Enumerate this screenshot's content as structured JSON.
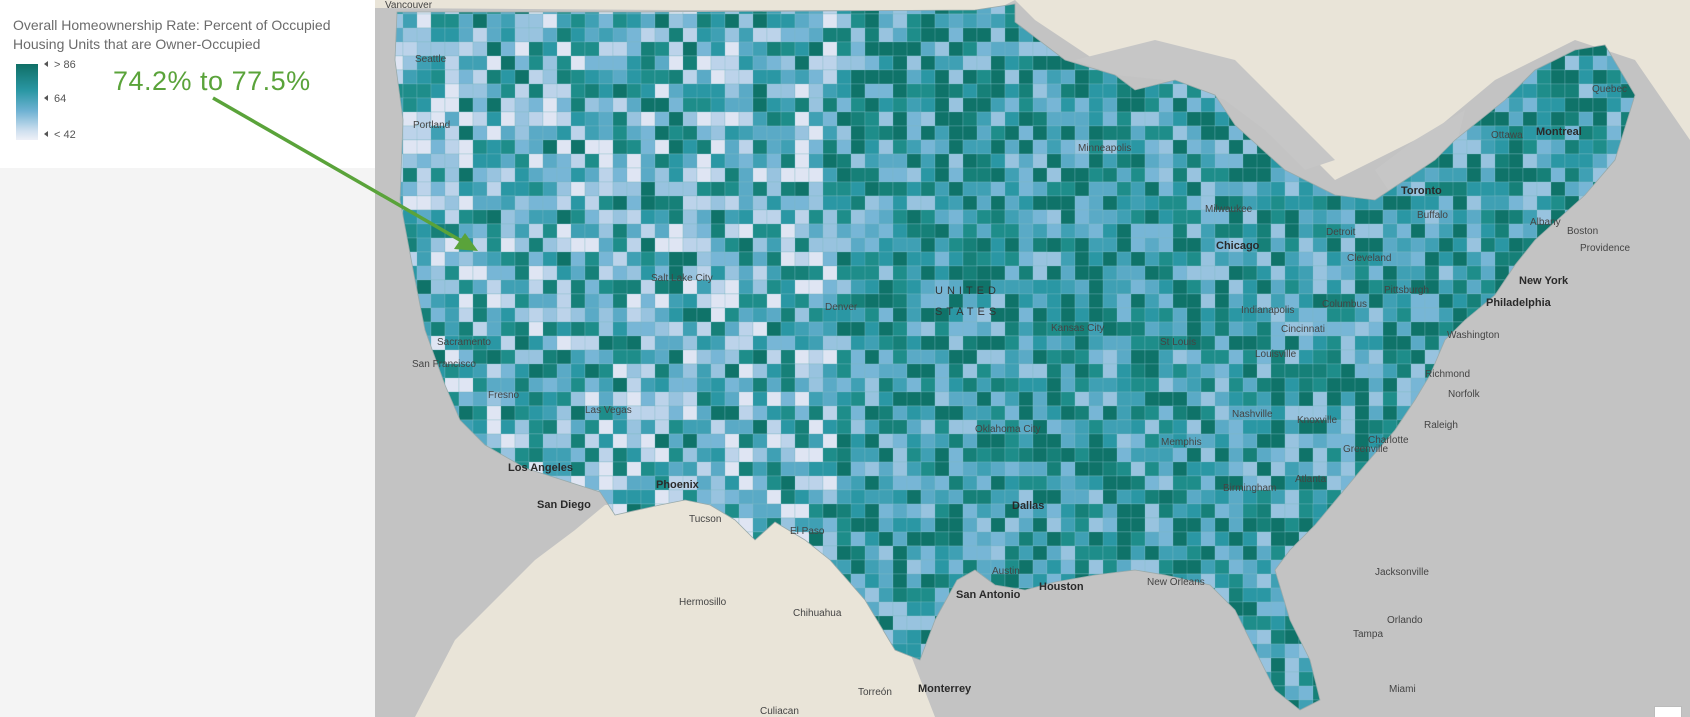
{
  "legend": {
    "title": "Overall Homeownership Rate: Percent of Occupied Housing Units that are Owner-Occupied",
    "ticks": {
      "high": "> 86",
      "mid": "64",
      "low": "< 42"
    },
    "ramp_colors": [
      "#0f6f66",
      "#2a97a4",
      "#6fb2d3",
      "#cfe0ef",
      "#eef0f7"
    ]
  },
  "annotation": {
    "text": "74.2% to 77.5%",
    "color": "#5aa33a"
  },
  "map": {
    "country_label": {
      "line1": "UNITED",
      "line2": "STATES"
    },
    "cities": {
      "vancouver": "Vancouver",
      "seattle": "Seattle",
      "portland": "Portland",
      "sacramento": "Sacramento",
      "san_francisco": "San Francisco",
      "fresno": "Fresno",
      "las_vegas": "Las Vegas",
      "los_angeles": "Los Angeles",
      "san_diego": "San Diego",
      "salt_lake_city": "Salt Lake City",
      "phoenix": "Phoenix",
      "tucson": "Tucson",
      "el_paso": "El Paso",
      "denver": "Denver",
      "hermosillo": "Hermosillo",
      "chihuahua": "Chihuahua",
      "culiacan": "Culiacan",
      "torreon": "Torreón",
      "monterrey": "Monterrey",
      "oklahoma_city": "Oklahoma City",
      "dallas": "Dallas",
      "austin": "Austin",
      "san_antonio": "San Antonio",
      "houston": "Houston",
      "new_orleans": "New Orleans",
      "kansas_city": "Kansas City",
      "st_louis": "St Louis",
      "minneapolis": "Minneapolis",
      "milwaukee": "Milwaukee",
      "chicago": "Chicago",
      "detroit": "Detroit",
      "indianapolis": "Indianapolis",
      "cincinnati": "Cincinnati",
      "louisville": "Louisville",
      "nashville": "Nashville",
      "memphis": "Memphis",
      "knoxville": "Knoxville",
      "birmingham": "Birmingham",
      "atlanta": "Atlanta",
      "greenville": "Greenville",
      "charlotte": "Charlotte",
      "raleigh": "Raleigh",
      "norfolk": "Norfolk",
      "richmond": "Richmond",
      "washington": "Washington",
      "philadelphia": "Philadelphia",
      "new_york": "New York",
      "boston": "Boston",
      "providence": "Providence",
      "albany": "Albany",
      "buffalo": "Buffalo",
      "toronto": "Toronto",
      "cleveland": "Cleveland",
      "columbus": "Columbus",
      "pittsburgh": "Pittsburgh",
      "ottawa": "Ottawa",
      "montreal": "Montreal",
      "quebec": "Quebec",
      "jacksonville": "Jacksonville",
      "orlando": "Orlando",
      "tampa": "Tampa",
      "miami": "Miami"
    },
    "colors": {
      "land_outside": "#e9e4d8",
      "water": "#c2c2c2",
      "great_lakes": "#c6c6c6",
      "county_palette": [
        "#0f7369",
        "#168078",
        "#1e8d8a",
        "#2a97a4",
        "#3fa0b4",
        "#5aaac6",
        "#77b6d6",
        "#98c3df",
        "#bcd3ea",
        "#dfe5f3"
      ]
    }
  }
}
